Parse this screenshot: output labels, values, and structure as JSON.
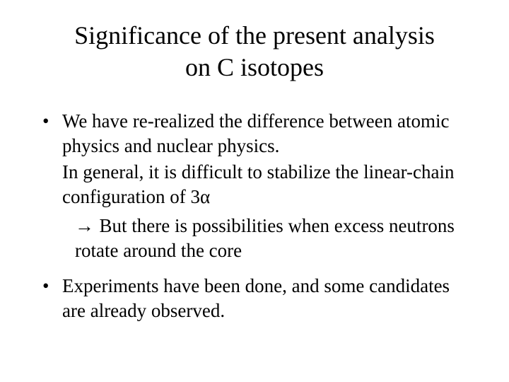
{
  "title_line1": "Significance of the present analysis",
  "title_line2": "on C isotopes",
  "bullet1_line1": "We have re-realized the difference between atomic physics and nuclear physics.",
  "bullet1_line2": "In general, it is difficult to stabilize the linear-chain configuration of 3α",
  "bullet1_arrow_prefix": "→ ",
  "bullet1_arrow_text": "But there is possibilities when excess neutrons rotate around the core",
  "bullet2": "Experiments have been done, and some candidates are already observed.",
  "colors": {
    "background": "#ffffff",
    "text": "#000000"
  },
  "font": {
    "family": "Times New Roman",
    "title_size_pt": 36,
    "body_size_pt": 27
  }
}
